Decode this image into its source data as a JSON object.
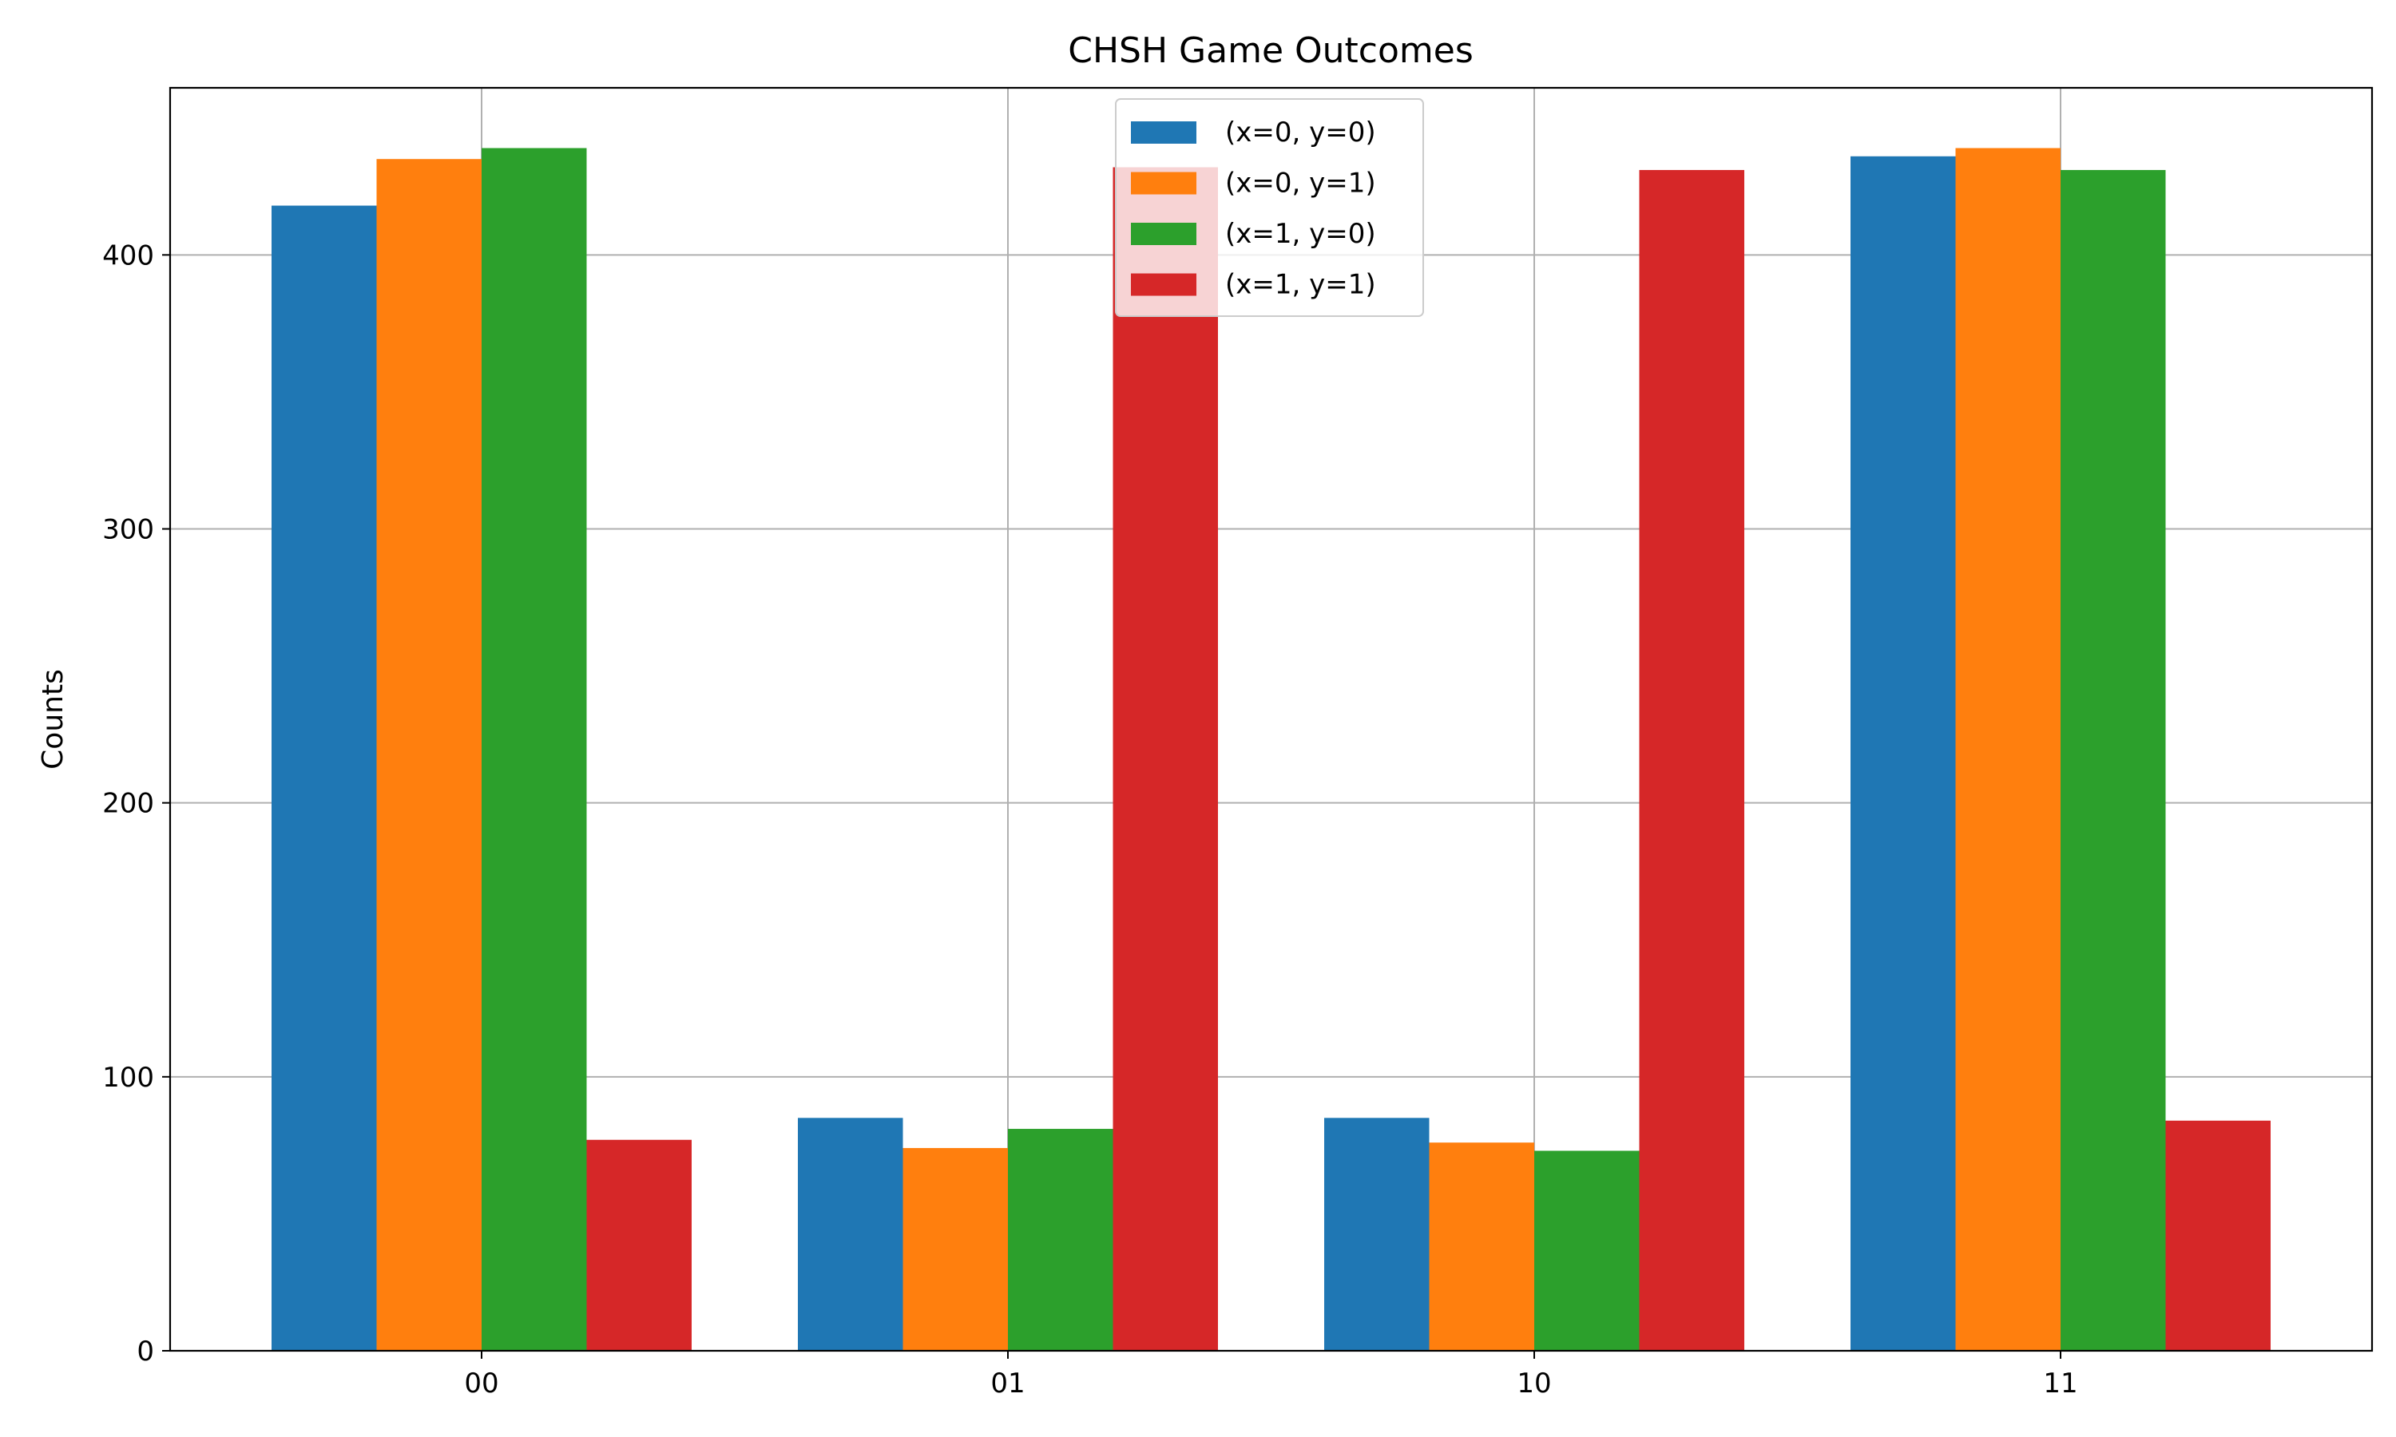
{
  "chart_data": {
    "type": "bar",
    "title": "CHSH Game Outcomes",
    "xlabel": "",
    "ylabel": "Counts",
    "categories": [
      "00",
      "01",
      "10",
      "11"
    ],
    "ylim": [
      0,
      461
    ],
    "yticks": [
      0,
      100,
      200,
      300,
      400
    ],
    "grid": true,
    "legend_position": "top-center",
    "series": [
      {
        "name": "(x=0, y=0)",
        "color": "#1f77b4",
        "values": [
          418,
          85,
          85,
          436
        ]
      },
      {
        "name": "(x=0, y=1)",
        "color": "#ff7f0e",
        "values": [
          435,
          74,
          76,
          439
        ]
      },
      {
        "name": "(x=1, y=0)",
        "color": "#2ca02c",
        "values": [
          439,
          81,
          73,
          431
        ]
      },
      {
        "name": "(x=1, y=1)",
        "color": "#d62728",
        "values": [
          77,
          432,
          431,
          84
        ]
      }
    ]
  }
}
